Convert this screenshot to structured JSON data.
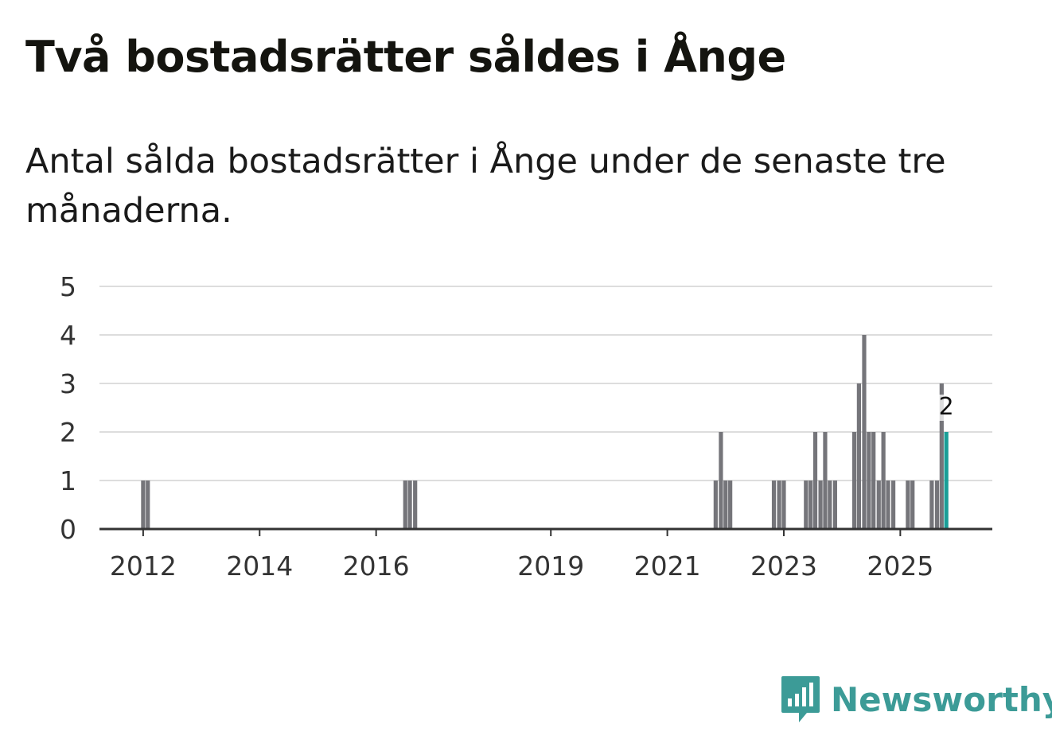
{
  "title": "Två bostadsrätter såldes i Ånge",
  "subtitle": "Antal sålda bostadsrätter i Ånge under de senaste tre månaderna.",
  "brand": {
    "name": "Newsworthy",
    "color": "#3c9b97"
  },
  "colors": {
    "bar": "#75757a",
    "highlight": "#1a9e97",
    "grid": "#dddddd",
    "axis": "#333333"
  },
  "chart_data": {
    "type": "bar",
    "title": "Två bostadsrätter såldes i Ånge",
    "xlabel": "",
    "ylabel": "",
    "ylim": [
      0,
      5
    ],
    "yticks": [
      0,
      1,
      2,
      3,
      4,
      5
    ],
    "x_range": [
      2011.25,
      2026.58
    ],
    "xticks": [
      {
        "label": "2012",
        "x": 2012.0
      },
      {
        "label": "2014",
        "x": 2014.0
      },
      {
        "label": "2016",
        "x": 2016.0
      },
      {
        "label": "2019",
        "x": 2019.0
      },
      {
        "label": "2021",
        "x": 2021.0
      },
      {
        "label": "2023",
        "x": 2023.0
      },
      {
        "label": "2025",
        "x": 2025.0
      }
    ],
    "bars": [
      {
        "x": 2012.0,
        "value": 1
      },
      {
        "x": 2012.08,
        "value": 1
      },
      {
        "x": 2016.5,
        "value": 1
      },
      {
        "x": 2016.58,
        "value": 1
      },
      {
        "x": 2016.67,
        "value": 1
      },
      {
        "x": 2021.83,
        "value": 1
      },
      {
        "x": 2021.92,
        "value": 2
      },
      {
        "x": 2022.0,
        "value": 1
      },
      {
        "x": 2022.08,
        "value": 1
      },
      {
        "x": 2022.83,
        "value": 1
      },
      {
        "x": 2022.92,
        "value": 1
      },
      {
        "x": 2023.0,
        "value": 1
      },
      {
        "x": 2023.38,
        "value": 1
      },
      {
        "x": 2023.46,
        "value": 1
      },
      {
        "x": 2023.54,
        "value": 2
      },
      {
        "x": 2023.63,
        "value": 1
      },
      {
        "x": 2023.71,
        "value": 2
      },
      {
        "x": 2023.79,
        "value": 1
      },
      {
        "x": 2023.88,
        "value": 1
      },
      {
        "x": 2024.21,
        "value": 2
      },
      {
        "x": 2024.29,
        "value": 3
      },
      {
        "x": 2024.38,
        "value": 4
      },
      {
        "x": 2024.46,
        "value": 2
      },
      {
        "x": 2024.54,
        "value": 2
      },
      {
        "x": 2024.63,
        "value": 1
      },
      {
        "x": 2024.71,
        "value": 2
      },
      {
        "x": 2024.79,
        "value": 1
      },
      {
        "x": 2024.88,
        "value": 1
      },
      {
        "x": 2025.13,
        "value": 1
      },
      {
        "x": 2025.21,
        "value": 1
      },
      {
        "x": 2025.54,
        "value": 1
      },
      {
        "x": 2025.63,
        "value": 1
      },
      {
        "x": 2025.71,
        "value": 3
      },
      {
        "x": 2025.79,
        "value": 2,
        "highlight": true
      }
    ],
    "annotation": {
      "text": "2",
      "x": 2025.79,
      "value": 2
    }
  }
}
